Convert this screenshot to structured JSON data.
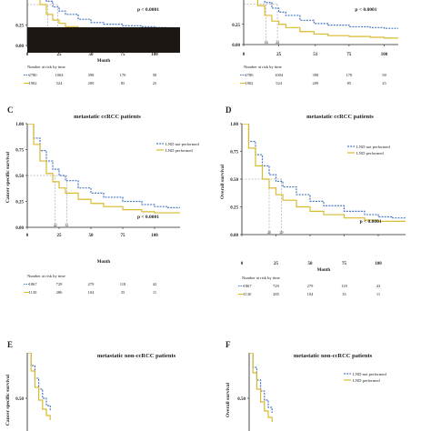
{
  "colors": {
    "lnd_not_performed": "#4a78c4",
    "lnd_performed": "#d9bb2e",
    "axis": "#222222",
    "guide": "#888888",
    "redaction": "#1c1712"
  },
  "chart_data": [
    {
      "panel": "A",
      "type": "line",
      "visible": "partial",
      "title": "",
      "xlabel": "Month",
      "ylabel": "",
      "xlim": [
        0,
        120
      ],
      "ylim": [
        0,
        1
      ],
      "x_ticks": [
        "0",
        "25",
        "50",
        "75",
        "100"
      ],
      "y_ticks": [
        "0.00",
        "0.25"
      ],
      "series": [
        {
          "key": "not",
          "x": [
            0,
            5,
            10,
            15,
            20,
            25,
            30,
            40,
            50,
            60,
            75,
            90,
            100,
            110
          ],
          "y": [
            1,
            0.78,
            0.64,
            0.54,
            0.47,
            0.42,
            0.38,
            0.32,
            0.28,
            0.26,
            0.24,
            0.23,
            0.22,
            0.22
          ]
        },
        {
          "key": "perf",
          "x": [
            0,
            5,
            10,
            15,
            20,
            25,
            30,
            40,
            50,
            60,
            75,
            90,
            100,
            110
          ],
          "y": [
            1,
            0.68,
            0.5,
            0.38,
            0.31,
            0.27,
            0.23,
            0.18,
            0.15,
            0.13,
            0.12,
            0.11,
            0.1,
            0.1
          ]
        }
      ],
      "medians": [
        "16",
        "24"
      ],
      "p_value": "p < 0.0001",
      "risk_title": "Number at risk by time",
      "risk": [
        [
          "2780",
          "1004",
          "398",
          "170",
          "58"
        ],
        [
          "1902",
          "524",
          "209",
          "85",
          "25"
        ]
      ]
    },
    {
      "panel": "B",
      "type": "line",
      "visible": "partial",
      "title": "",
      "xlabel": "",
      "ylabel": "",
      "xlim": [
        0,
        110
      ],
      "ylim": [
        0,
        1
      ],
      "x_ticks": [
        "0",
        "25",
        "51",
        "75",
        "100"
      ],
      "y_ticks": [
        "0.00",
        "0.25"
      ],
      "series": [
        {
          "key": "not",
          "x": [
            0,
            5,
            10,
            15,
            20,
            25,
            30,
            40,
            50,
            60,
            75,
            90,
            100,
            110
          ],
          "y": [
            1,
            0.76,
            0.62,
            0.52,
            0.45,
            0.4,
            0.36,
            0.3,
            0.26,
            0.24,
            0.22,
            0.21,
            0.2,
            0.2
          ]
        },
        {
          "key": "perf",
          "x": [
            0,
            5,
            10,
            15,
            20,
            25,
            30,
            40,
            50,
            60,
            75,
            90,
            100,
            110
          ],
          "y": [
            1,
            0.66,
            0.48,
            0.36,
            0.29,
            0.25,
            0.21,
            0.16,
            0.13,
            0.11,
            0.1,
            0.09,
            0.08,
            0.08
          ]
        }
      ],
      "medians": [
        "16",
        "24"
      ],
      "p_value": "p < 0.0001",
      "risk_title": "Number at risk by time",
      "risk": [
        [
          "2780",
          "1004",
          "398",
          "170",
          "58"
        ],
        [
          "1902",
          "524",
          "209",
          "85",
          "25"
        ]
      ]
    },
    {
      "panel": "C",
      "type": "line",
      "title": "metastatic ccRCC patients",
      "xlabel": "Month",
      "ylabel": "Cancer specific survival",
      "xlim": [
        0,
        120
      ],
      "ylim": [
        0,
        1
      ],
      "x_ticks": [
        "0",
        "25",
        "50",
        "75",
        "100"
      ],
      "y_ticks": [
        "0.00",
        "0.25",
        "0.50",
        "0.75",
        "1.00"
      ],
      "legend": [
        "LND not performed",
        "LND performed"
      ],
      "series": [
        {
          "key": "not",
          "name": "LND not performed",
          "x": [
            0,
            5,
            10,
            15,
            20,
            25,
            30,
            40,
            50,
            60,
            75,
            90,
            100,
            110,
            120
          ],
          "y": [
            1,
            0.86,
            0.74,
            0.64,
            0.56,
            0.5,
            0.45,
            0.38,
            0.33,
            0.29,
            0.25,
            0.22,
            0.2,
            0.19,
            0.19
          ]
        },
        {
          "key": "perf",
          "name": "LND performed",
          "x": [
            0,
            5,
            10,
            15,
            20,
            25,
            30,
            40,
            50,
            60,
            75,
            90,
            100,
            110,
            120
          ],
          "y": [
            1,
            0.8,
            0.64,
            0.52,
            0.44,
            0.38,
            0.33,
            0.27,
            0.23,
            0.2,
            0.17,
            0.15,
            0.14,
            0.14,
            0.14
          ]
        }
      ],
      "medians": [
        "22",
        "31"
      ],
      "p_value": "p < 0.0001",
      "risk_title": "Number at risk by time",
      "risk": [
        [
          "1867",
          "729",
          "279",
          "118",
          "42"
        ],
        [
          "1130",
          "286",
          "104",
          "35",
          "11"
        ]
      ]
    },
    {
      "panel": "D",
      "type": "line",
      "title": "metastatic ccRCC patients",
      "xlabel": "Month",
      "ylabel": "Overall survival",
      "xlim": [
        0,
        120
      ],
      "ylim": [
        0,
        1
      ],
      "x_ticks": [
        "0",
        "25",
        "50",
        "75",
        "100"
      ],
      "y_ticks": [
        "0.00",
        "0.25",
        "0.50",
        "0.75",
        "1.00"
      ],
      "legend": [
        "LND not performed",
        "LND performed"
      ],
      "series": [
        {
          "key": "not",
          "name": "LND not performed",
          "x": [
            0,
            5,
            10,
            15,
            20,
            25,
            30,
            40,
            50,
            60,
            75,
            90,
            100,
            110,
            120
          ],
          "y": [
            1,
            0.84,
            0.72,
            0.62,
            0.54,
            0.48,
            0.43,
            0.36,
            0.3,
            0.26,
            0.21,
            0.18,
            0.16,
            0.15,
            0.15
          ]
        },
        {
          "key": "perf",
          "name": "LND performed",
          "x": [
            0,
            5,
            10,
            15,
            20,
            25,
            30,
            40,
            50,
            60,
            75,
            90,
            100,
            110,
            120
          ],
          "y": [
            1,
            0.78,
            0.62,
            0.5,
            0.42,
            0.36,
            0.31,
            0.25,
            0.21,
            0.18,
            0.15,
            0.13,
            0.12,
            0.12,
            0.12
          ]
        }
      ],
      "medians": [
        "20",
        "29"
      ],
      "p_value": "p < 0.0001",
      "risk_title": "Number at risk by time",
      "risk": [
        [
          "1867",
          "729",
          "279",
          "118",
          "43"
        ],
        [
          "1130",
          "285",
          "104",
          "35",
          "11"
        ]
      ]
    },
    {
      "panel": "E",
      "type": "line",
      "visible": "partial",
      "title": "metastatic non-ccRCC patients",
      "xlabel": "",
      "ylabel": "Cancer specific survival",
      "xlim": [
        0,
        120
      ],
      "ylim": [
        0,
        1
      ],
      "x_ticks": [],
      "y_ticks": [
        "0.50"
      ],
      "series": [
        {
          "key": "not",
          "x": [
            0,
            3,
            6,
            9,
            12,
            15,
            18
          ],
          "y": [
            1,
            0.86,
            0.72,
            0.6,
            0.5,
            0.42,
            0.36
          ]
        },
        {
          "key": "perf",
          "x": [
            0,
            3,
            6,
            9,
            12,
            15,
            18
          ],
          "y": [
            1,
            0.8,
            0.62,
            0.48,
            0.38,
            0.31,
            0.26
          ]
        }
      ]
    },
    {
      "panel": "F",
      "type": "line",
      "visible": "partial",
      "title": "metastatic non-ccRCC patients",
      "xlabel": "",
      "ylabel": "Overall survival",
      "xlim": [
        0,
        120
      ],
      "ylim": [
        0,
        1
      ],
      "x_ticks": [],
      "y_ticks": [
        "0.50"
      ],
      "legend": [
        "LND not performed",
        "LND performed"
      ],
      "series": [
        {
          "key": "not",
          "name": "LND not performed",
          "x": [
            0,
            3,
            6,
            9,
            12,
            15,
            18
          ],
          "y": [
            1,
            0.84,
            0.7,
            0.58,
            0.48,
            0.4,
            0.34
          ]
        },
        {
          "key": "perf",
          "name": "LND performed",
          "x": [
            0,
            3,
            6,
            9,
            12,
            15,
            18
          ],
          "y": [
            1,
            0.78,
            0.6,
            0.46,
            0.36,
            0.29,
            0.24
          ]
        }
      ]
    }
  ]
}
